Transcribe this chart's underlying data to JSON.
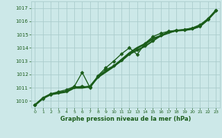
{
  "title": "Graphe pression niveau de la mer (hPa)",
  "bg_color": "#cce8e8",
  "grid_color": "#aacccc",
  "line_color": "#1a5c1a",
  "ylim": [
    1009.5,
    1017.5
  ],
  "xlim": [
    -0.5,
    23.5
  ],
  "yticks": [
    1010,
    1011,
    1012,
    1013,
    1014,
    1015,
    1016,
    1017
  ],
  "xticks": [
    0,
    1,
    2,
    3,
    4,
    5,
    6,
    7,
    8,
    9,
    10,
    11,
    12,
    13,
    14,
    15,
    16,
    17,
    18,
    19,
    20,
    21,
    22,
    23
  ],
  "series": [
    {
      "x": [
        0,
        1,
        2,
        3,
        4,
        5,
        6,
        7,
        8,
        9,
        10,
        11,
        12,
        13,
        14,
        15,
        16,
        17,
        18,
        19,
        20,
        21,
        22,
        23
      ],
      "y": [
        1009.7,
        1010.2,
        1010.5,
        1010.6,
        1010.7,
        1011.0,
        1011.1,
        1011.0,
        1011.8,
        1012.2,
        1012.6,
        1013.0,
        1013.5,
        1013.8,
        1014.1,
        1014.5,
        1014.9,
        1015.1,
        1015.3,
        1015.3,
        1015.4,
        1015.6,
        1016.1,
        1016.8
      ],
      "marker": null,
      "lw": 1.0,
      "ms": 0
    },
    {
      "x": [
        0,
        1,
        2,
        3,
        4,
        5,
        6,
        7,
        8,
        9,
        10,
        11,
        12,
        13,
        14,
        15,
        16,
        17,
        18,
        19,
        20,
        21,
        22,
        23
      ],
      "y": [
        1009.7,
        1010.2,
        1010.5,
        1010.65,
        1010.75,
        1011.05,
        1011.1,
        1011.05,
        1011.85,
        1012.35,
        1012.65,
        1013.1,
        1013.55,
        1013.85,
        1014.15,
        1014.55,
        1014.95,
        1015.2,
        1015.32,
        1015.35,
        1015.45,
        1015.65,
        1016.15,
        1016.82
      ],
      "marker": "D",
      "lw": 1.0,
      "ms": 2.5
    },
    {
      "x": [
        0,
        1,
        2,
        3,
        4,
        5,
        6,
        7,
        8,
        9,
        10,
        11,
        12,
        13,
        14,
        15,
        16,
        17,
        18,
        19,
        20,
        21,
        22,
        23
      ],
      "y": [
        1009.7,
        1010.25,
        1010.55,
        1010.7,
        1010.85,
        1011.1,
        1012.15,
        1011.0,
        1011.9,
        1012.5,
        1013.0,
        1013.55,
        1014.0,
        1013.5,
        1014.35,
        1014.85,
        1015.1,
        1015.25,
        1015.3,
        1015.38,
        1015.5,
        1015.75,
        1016.2,
        1016.85
      ],
      "marker": "D",
      "lw": 1.0,
      "ms": 2.5
    },
    {
      "x": [
        0,
        1,
        2,
        3,
        4,
        5,
        6,
        7,
        8,
        9,
        10,
        11,
        12,
        13,
        14,
        15,
        16,
        17,
        18,
        19,
        20,
        21,
        22,
        23
      ],
      "y": [
        1009.7,
        1010.2,
        1010.5,
        1010.6,
        1010.7,
        1011.0,
        1011.0,
        1011.1,
        1011.8,
        1012.2,
        1012.6,
        1013.1,
        1013.6,
        1014.0,
        1014.3,
        1014.7,
        1014.9,
        1015.2,
        1015.3,
        1015.35,
        1015.45,
        1015.65,
        1016.15,
        1016.78
      ],
      "marker": null,
      "lw": 2.0,
      "ms": 0
    }
  ]
}
